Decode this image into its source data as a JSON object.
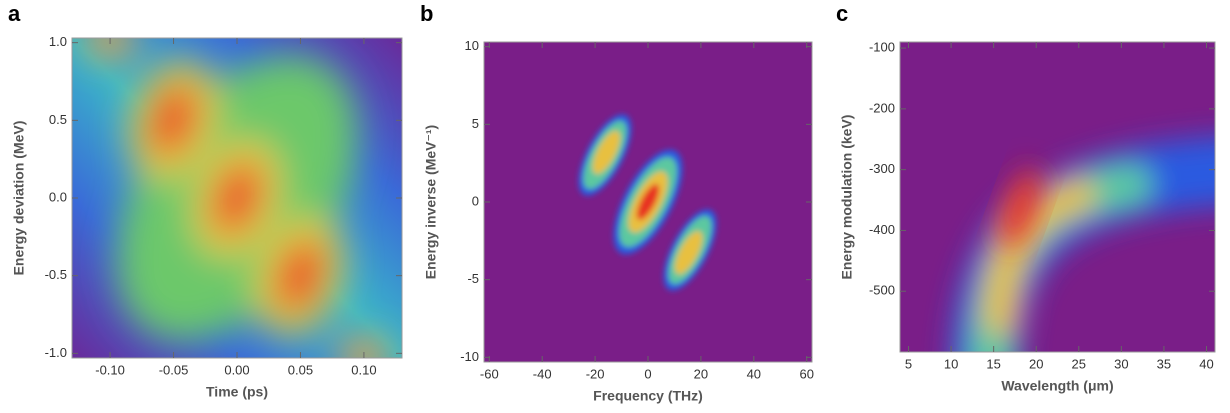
{
  "chart_data": [
    {
      "type": "heatmap",
      "panel_label": "a",
      "x_label": "Time (ps)",
      "y_label": "Energy deviation (MeV)",
      "xlim": [
        -0.13,
        0.13
      ],
      "xticks": [
        {
          "value": -0.1,
          "label": "-0.10"
        },
        {
          "value": -0.05,
          "label": "-0.05"
        },
        {
          "value": 0,
          "label": "0.00"
        },
        {
          "value": 0.05,
          "label": "0.05"
        },
        {
          "value": 0.1,
          "label": "0.10"
        }
      ],
      "ylim": [
        -1.03,
        1.03
      ],
      "yticks": [
        {
          "value": -1,
          "label": "-1.0"
        },
        {
          "value": -0.5,
          "label": "-0.5"
        },
        {
          "value": 0,
          "label": "0.0"
        },
        {
          "value": 0.5,
          "label": "0.5"
        },
        {
          "value": 1,
          "label": "1.0"
        }
      ]
    },
    {
      "type": "heatmap",
      "panel_label": "b",
      "x_label": "Frequency (THz)",
      "y_label": "Energy inverse (MeV⁻¹)",
      "xlim": [
        -62,
        62
      ],
      "xticks": [
        -60,
        -40,
        -20,
        0,
        20,
        40,
        60
      ],
      "ylim": [
        -10.3,
        10.3
      ],
      "yticks": [
        -10,
        -5,
        0,
        5,
        10
      ]
    },
    {
      "type": "heatmap",
      "panel_label": "c",
      "x_label": "Wavelength (μm)",
      "y_label": "Energy modulation (keV)",
      "xlim": [
        4,
        41
      ],
      "xticks": [
        5,
        10,
        15,
        20,
        25,
        30,
        35,
        40
      ],
      "ylim": [
        -600,
        -90
      ],
      "yticks": [
        -500,
        -400,
        -300,
        -200,
        -100
      ]
    }
  ]
}
